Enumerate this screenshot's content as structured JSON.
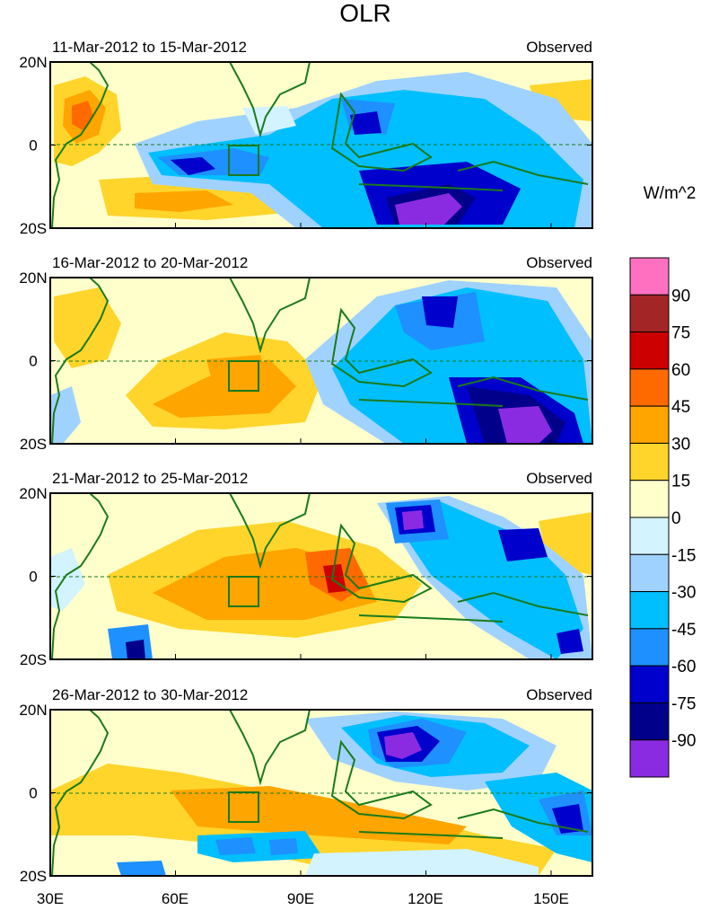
{
  "title": "OLR",
  "units_label": "W/m^2",
  "panels": [
    {
      "period": "11-Mar-2012 to 15-Mar-2012",
      "label": "Observed"
    },
    {
      "period": "16-Mar-2012 to 20-Mar-2012",
      "label": "Observed"
    },
    {
      "period": "21-Mar-2012 to 25-Mar-2012",
      "label": "Observed"
    },
    {
      "period": "26-Mar-2012 to 30-Mar-2012",
      "label": "Observed"
    }
  ],
  "lat_labels": [
    "20N",
    "0",
    "20S"
  ],
  "lon_labels": [
    "30E",
    "60E",
    "90E",
    "120E",
    "150E"
  ],
  "colorbar": {
    "colors": [
      "#ff70c0",
      "#a32525",
      "#cd0000",
      "#ff6a00",
      "#ffa500",
      "#ffd52b",
      "#ffffcc",
      "#d2f3ff",
      "#a0d2ff",
      "#00bfff",
      "#1e90ff",
      "#0000cd",
      "#00008b",
      "#8a2be2"
    ],
    "labels": [
      "90",
      "75",
      "60",
      "45",
      "30",
      "15",
      "0",
      "-15",
      "-30",
      "-45",
      "-60",
      "-75",
      "-90"
    ]
  },
  "colors": {
    "coast": "#1a7a1a",
    "box": "#1a7a1a",
    "equator": "#1a7a1a",
    "background": "#ffffcc"
  }
}
